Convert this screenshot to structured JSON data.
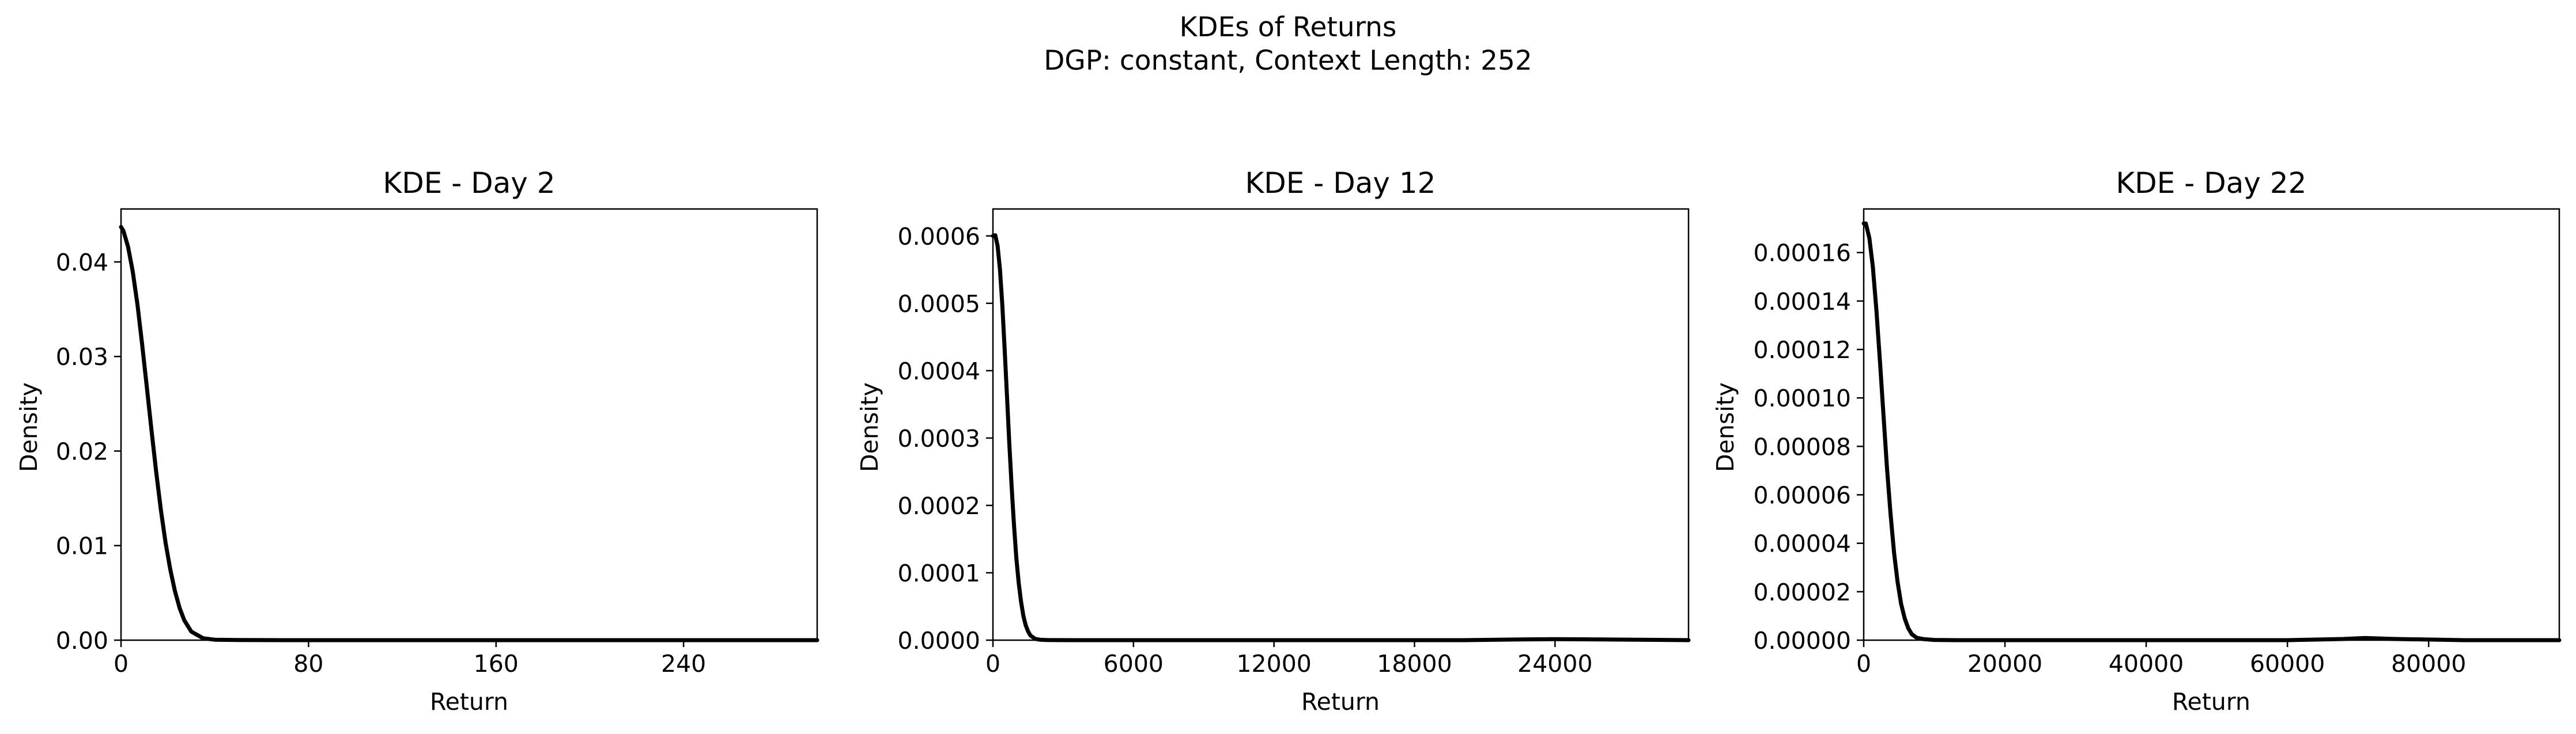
{
  "figure": {
    "title_line1": "KDEs of Returns",
    "title_line2": "DGP: constant, Context Length: 252"
  },
  "chart_data": [
    {
      "type": "line",
      "title": "KDE - Day 2",
      "xlabel": "Return",
      "ylabel": "Density",
      "xlim": [
        0,
        297
      ],
      "ylim": [
        0,
        0.0456
      ],
      "xticks": [
        0,
        80,
        160,
        240
      ],
      "xtick_labels": [
        "0",
        "80",
        "160",
        "240"
      ],
      "yticks": [
        0,
        0.01,
        0.02,
        0.03,
        0.04
      ],
      "ytick_labels": [
        "0.00",
        "0.01",
        "0.02",
        "0.03",
        "0.04"
      ],
      "grid": false,
      "series": [
        {
          "color": "#000000",
          "x": [
            0,
            1,
            3,
            5,
            7,
            9,
            11,
            13,
            15,
            17,
            19,
            21,
            23,
            25,
            27,
            30,
            35,
            40,
            50,
            70,
            100,
            150,
            200,
            250,
            297
          ],
          "y": [
            0.0437,
            0.0433,
            0.0416,
            0.039,
            0.0355,
            0.0313,
            0.0268,
            0.0222,
            0.0178,
            0.0138,
            0.0103,
            0.0075,
            0.0052,
            0.0034,
            0.0021,
            0.0009,
            0.0002,
            5e-05,
            1e-05,
            0.0,
            0.0,
            0.0,
            0.0,
            0.0,
            0.0
          ]
        }
      ]
    },
    {
      "type": "line",
      "title": "KDE - Day 12",
      "xlabel": "Return",
      "ylabel": "Density",
      "xlim": [
        0,
        29700
      ],
      "ylim": [
        0,
        0.00064
      ],
      "xticks": [
        0,
        6000,
        12000,
        18000,
        24000
      ],
      "xtick_labels": [
        "0",
        "6000",
        "12000",
        "18000",
        "24000"
      ],
      "yticks": [
        0,
        0.0001,
        0.0002,
        0.0003,
        0.0004,
        0.0005,
        0.0006
      ],
      "ytick_labels": [
        "0.0000",
        "0.0001",
        "0.0002",
        "0.0003",
        "0.0004",
        "0.0005",
        "0.0006"
      ],
      "grid": false,
      "series": [
        {
          "color": "#000000",
          "x": [
            0,
            100,
            200,
            300,
            400,
            500,
            600,
            700,
            800,
            900,
            1000,
            1100,
            1200,
            1300,
            1400,
            1500,
            1600,
            1800,
            2000,
            2300,
            2700,
            3500,
            5000,
            10000,
            15000,
            20000,
            22500,
            24000,
            26000,
            29700
          ],
          "y": [
            0.0006,
            0.000601,
            0.000585,
            0.00055,
            0.000497,
            0.000432,
            0.000362,
            0.000292,
            0.000227,
            0.00017,
            0.000122,
            8.5e-05,
            5.7e-05,
            3.6e-05,
            2.2e-05,
            1.3e-05,
            7e-06,
            2e-06,
            7e-07,
            2e-07,
            1e-07,
            0.0,
            0.0,
            0.0,
            0.0,
            0.0,
            1e-06,
            1.5e-06,
            1e-06,
            0.0
          ]
        }
      ]
    },
    {
      "type": "line",
      "title": "KDE - Day 22",
      "xlabel": "Return",
      "ylabel": "Density",
      "xlim": [
        0,
        98500
      ],
      "ylim": [
        0,
        0.000178
      ],
      "xticks": [
        0,
        20000,
        40000,
        60000,
        80000
      ],
      "xtick_labels": [
        "0",
        "20000",
        "40000",
        "60000",
        "80000"
      ],
      "yticks": [
        0,
        2e-05,
        4e-05,
        6e-05,
        8e-05,
        0.0001,
        0.00012,
        0.00014,
        0.00016
      ],
      "ytick_labels": [
        "0.00000",
        "0.00002",
        "0.00004",
        "0.00006",
        "0.00008",
        "0.00010",
        "0.00012",
        "0.00014",
        "0.00016"
      ],
      "grid": false,
      "series": [
        {
          "color": "#000000",
          "x": [
            0,
            300,
            800,
            1300,
            1800,
            2300,
            2800,
            3300,
            3800,
            4300,
            4800,
            5300,
            5800,
            6300,
            6800,
            7500,
            8500,
            10000,
            13000,
            20000,
            40000,
            60000,
            68000,
            71000,
            75000,
            85000,
            98500
          ],
          "y": [
            0.000172,
            0.000172,
            0.000166,
            0.000154,
            0.000136,
            0.000115,
            9.3e-05,
            7.1e-05,
            5.2e-05,
            3.6e-05,
            2.4e-05,
            1.5e-05,
            9e-06,
            5e-06,
            2.5e-06,
            1e-06,
            4e-07,
            1e-07,
            0.0,
            0.0,
            0.0,
            0.0,
            5e-07,
            9e-07,
            5e-07,
            0.0,
            0.0
          ]
        }
      ]
    }
  ]
}
